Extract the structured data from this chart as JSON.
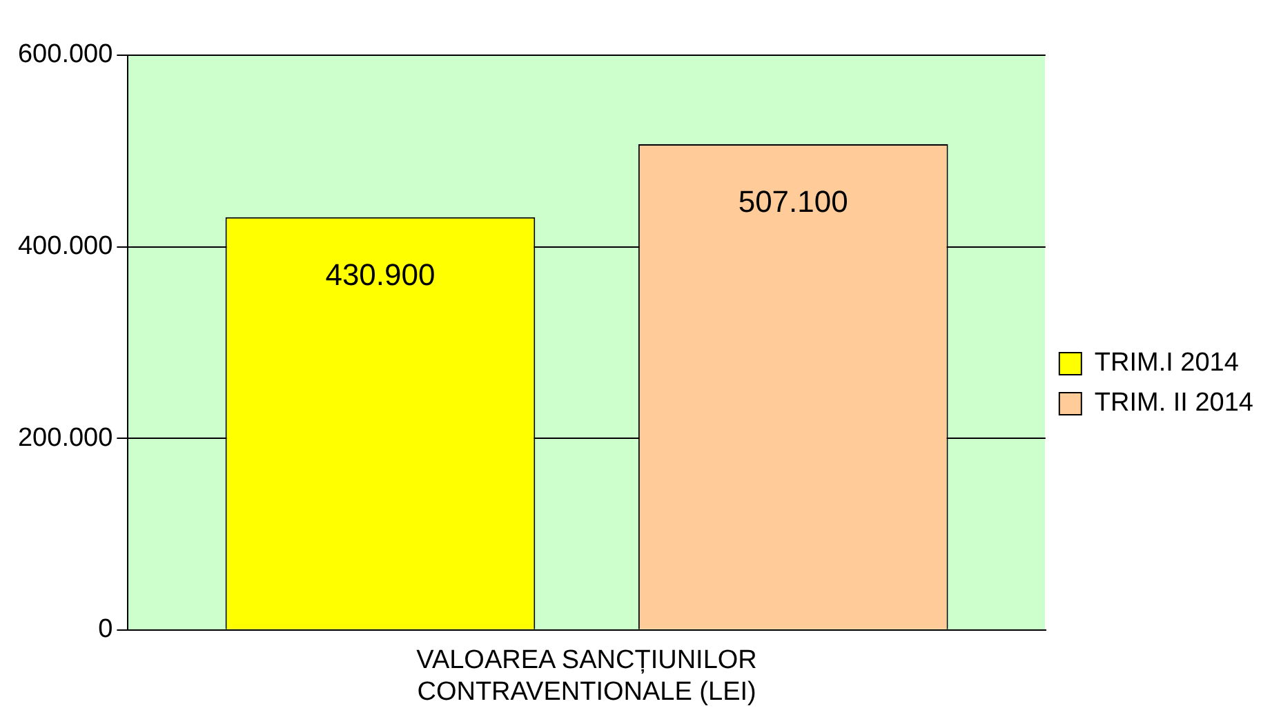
{
  "chart_data": {
    "type": "bar",
    "categories": [
      "VALOAREA SANCȚIUNILOR CONTRAVENTIONALE (LEI)"
    ],
    "series": [
      {
        "name": "TRIM.I 2014",
        "color": "#ffff00",
        "values": [
          430900
        ]
      },
      {
        "name": "TRIM. II 2014",
        "color": "#ffcc99",
        "values": [
          507100
        ]
      }
    ],
    "value_labels": [
      [
        "430.900"
      ],
      [
        "507.100"
      ]
    ],
    "ylim": [
      0,
      600000
    ],
    "yticks": [
      {
        "value": 0,
        "label": "0"
      },
      {
        "value": 200000,
        "label": "200.000"
      },
      {
        "value": 400000,
        "label": "400.000"
      },
      {
        "value": 600000,
        "label": "600.000"
      }
    ],
    "grid": "y",
    "legend": "right"
  }
}
